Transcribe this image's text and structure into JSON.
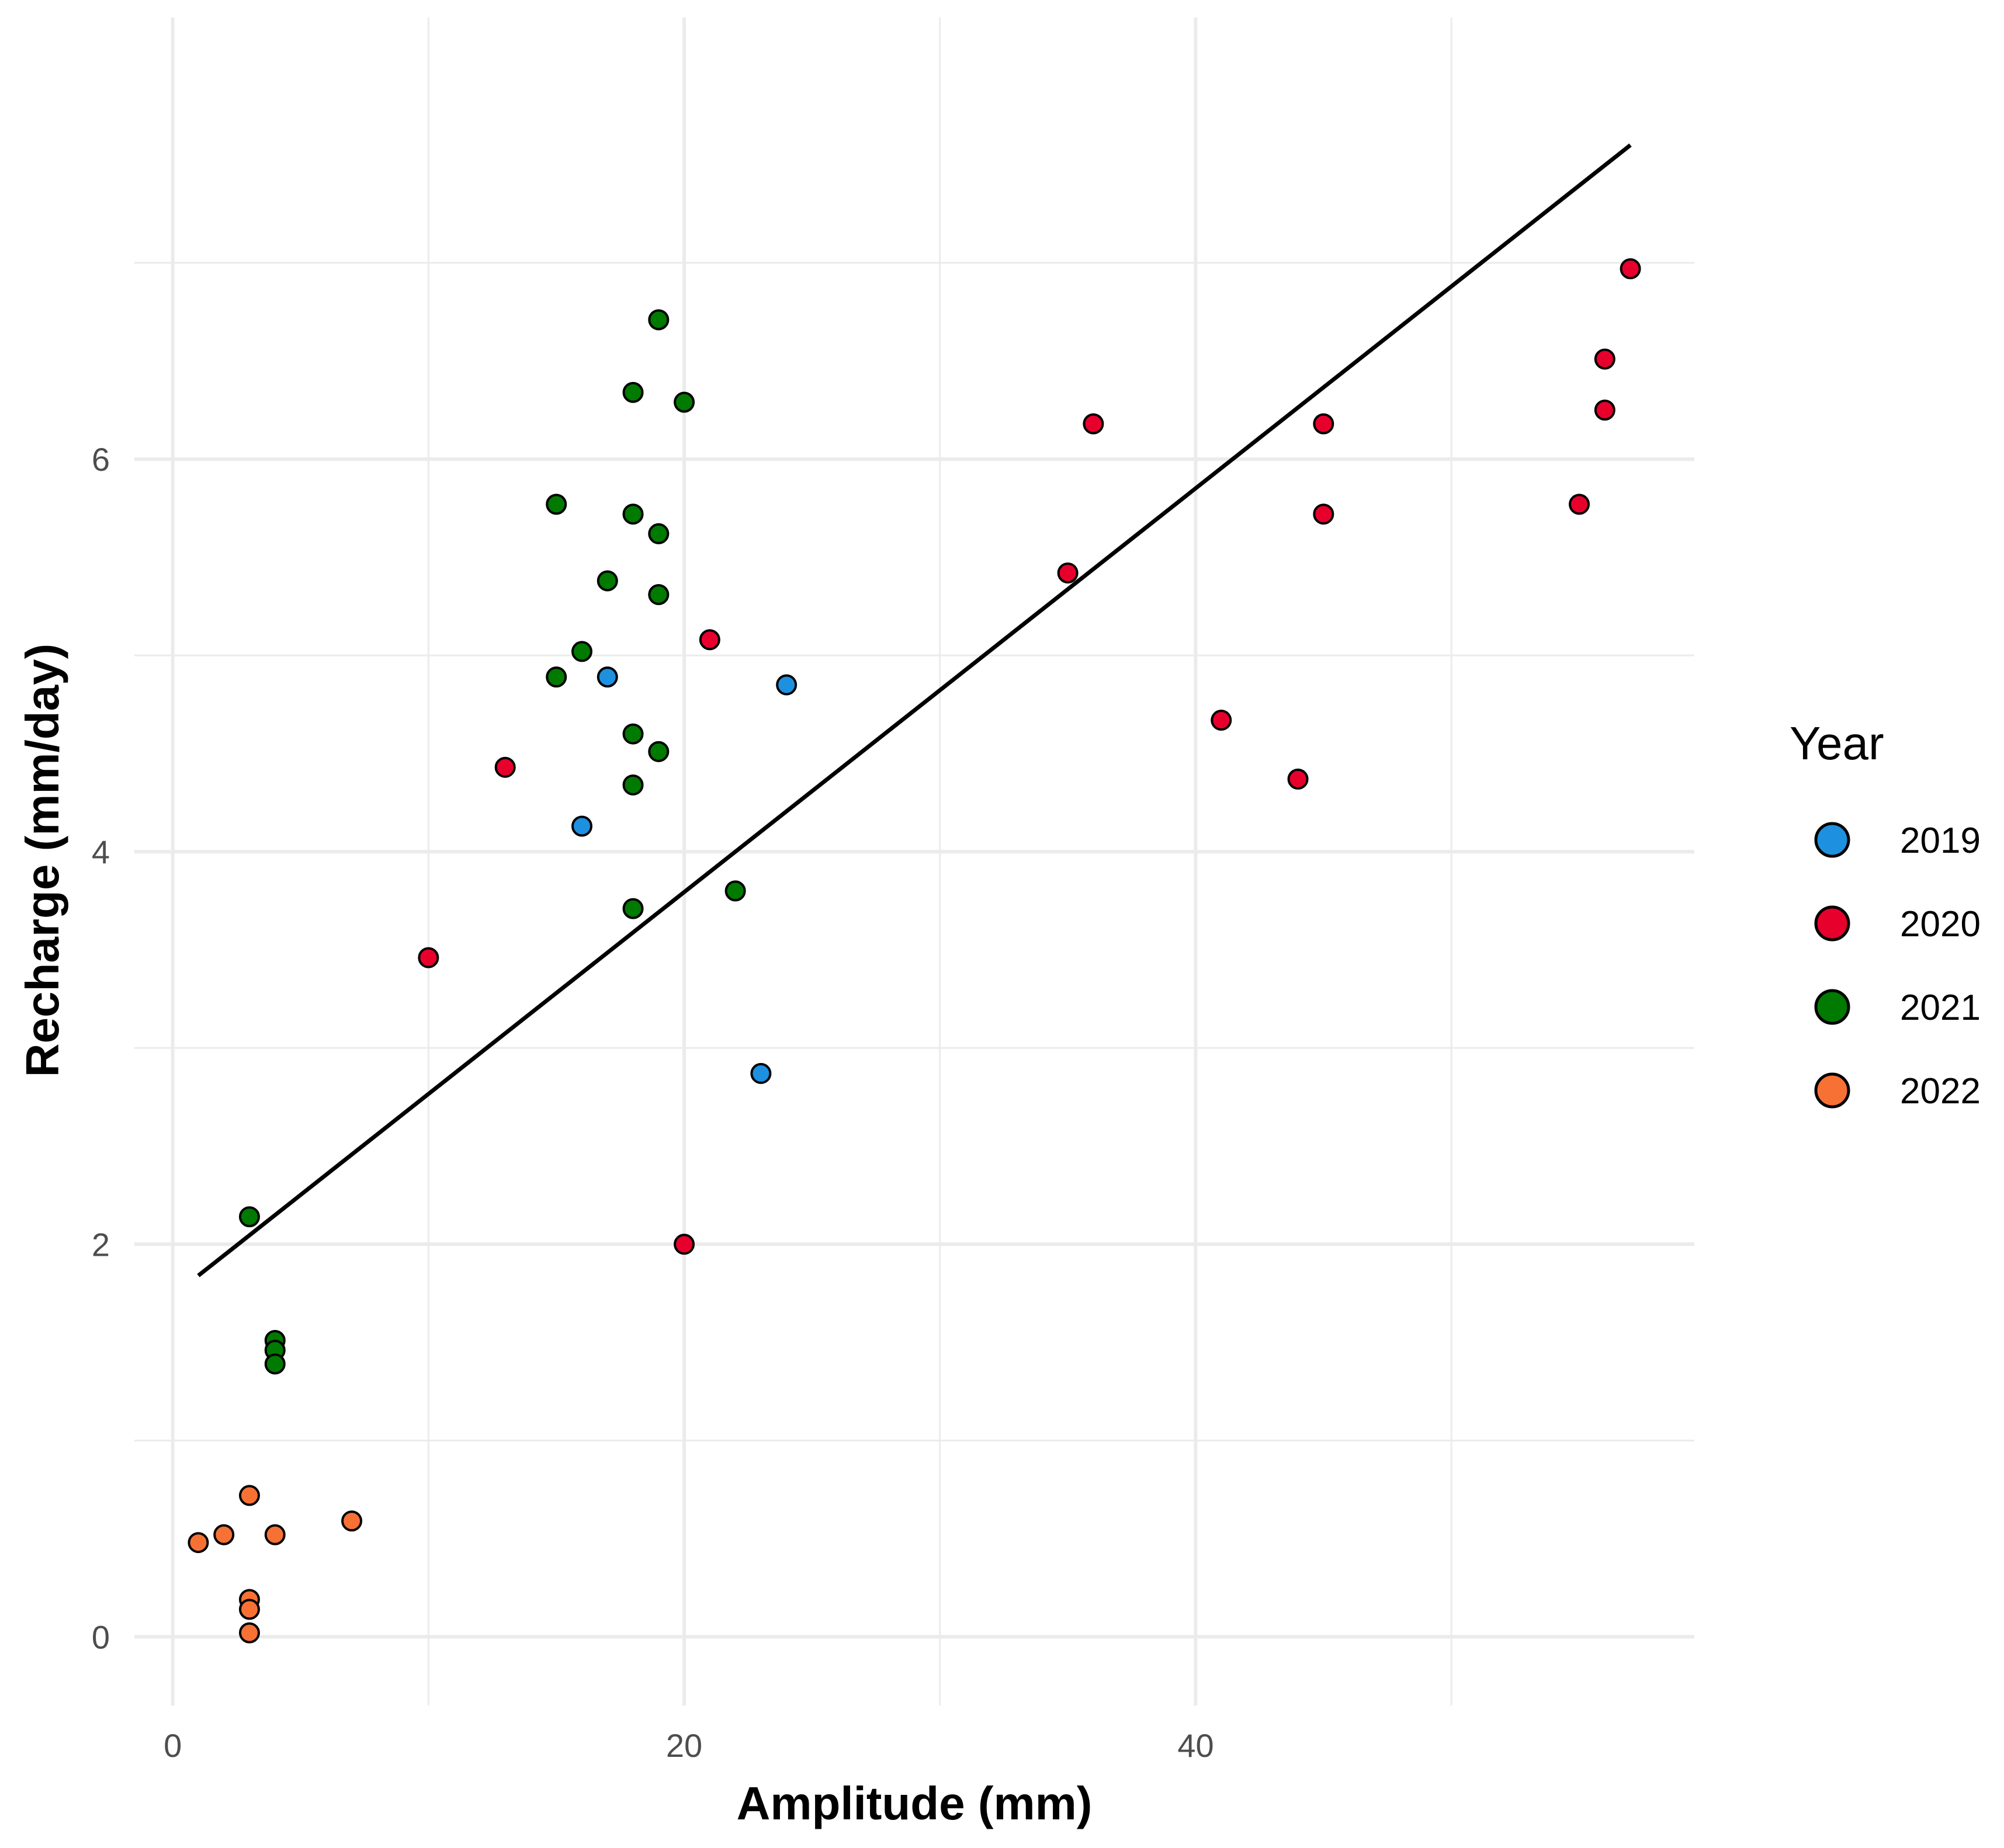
{
  "chart_data": {
    "type": "scatter",
    "title": "",
    "xlabel": "Amplitude (mm)",
    "ylabel": "Recharge (mm/day)",
    "xlim": [
      -1.5,
      59.5
    ],
    "ylim": [
      -0.35,
      8.25
    ],
    "x_ticks": [
      0,
      20,
      40
    ],
    "x_minor_ticks": [
      10,
      30,
      50
    ],
    "y_ticks": [
      0,
      2,
      4,
      6
    ],
    "y_minor_ticks": [
      1,
      3,
      5,
      7
    ],
    "grid": true,
    "legend": {
      "title": "Year",
      "position": "right",
      "entries": [
        {
          "label": "2019",
          "color": "#1E90E0"
        },
        {
          "label": "2020",
          "color": "#E8002D"
        },
        {
          "label": "2021",
          "color": "#007A00"
        },
        {
          "label": "2022",
          "color": "#F77135"
        }
      ]
    },
    "series": [
      {
        "name": "2019",
        "color": "#1E90E0",
        "points": [
          [
            17,
            4.89
          ],
          [
            24,
            4.85
          ],
          [
            16,
            4.13
          ],
          [
            23,
            2.87
          ]
        ]
      },
      {
        "name": "2020",
        "color": "#E8002D",
        "points": [
          [
            57,
            6.97
          ],
          [
            56,
            6.51
          ],
          [
            56,
            6.25
          ],
          [
            55,
            5.77
          ],
          [
            36,
            6.18
          ],
          [
            45,
            6.18
          ],
          [
            45,
            5.72
          ],
          [
            35,
            5.42
          ],
          [
            21,
            5.08
          ],
          [
            41,
            4.67
          ],
          [
            44,
            4.37
          ],
          [
            13,
            4.43
          ],
          [
            10,
            3.46
          ],
          [
            20,
            2.0
          ]
        ]
      },
      {
        "name": "2021",
        "color": "#007A00",
        "points": [
          [
            19,
            6.71
          ],
          [
            18,
            6.34
          ],
          [
            20,
            6.29
          ],
          [
            15,
            5.77
          ],
          [
            18,
            5.72
          ],
          [
            19,
            5.62
          ],
          [
            17,
            5.38
          ],
          [
            19,
            5.31
          ],
          [
            16,
            5.02
          ],
          [
            15,
            4.89
          ],
          [
            18,
            4.6
          ],
          [
            19,
            4.51
          ],
          [
            18,
            4.34
          ],
          [
            22,
            3.8
          ],
          [
            18,
            3.71
          ],
          [
            3,
            2.14
          ],
          [
            4,
            1.51
          ],
          [
            4,
            1.46
          ],
          [
            4,
            1.39
          ]
        ]
      },
      {
        "name": "2022",
        "color": "#F77135",
        "points": [
          [
            3,
            0.72
          ],
          [
            7,
            0.59
          ],
          [
            2,
            0.52
          ],
          [
            4,
            0.52
          ],
          [
            1,
            0.48
          ],
          [
            3,
            0.19
          ],
          [
            3,
            0.14
          ],
          [
            3,
            0.02
          ]
        ]
      }
    ],
    "trendline": {
      "type": "linear",
      "points": [
        [
          1,
          1.84
        ],
        [
          57,
          7.6
        ]
      ]
    }
  }
}
